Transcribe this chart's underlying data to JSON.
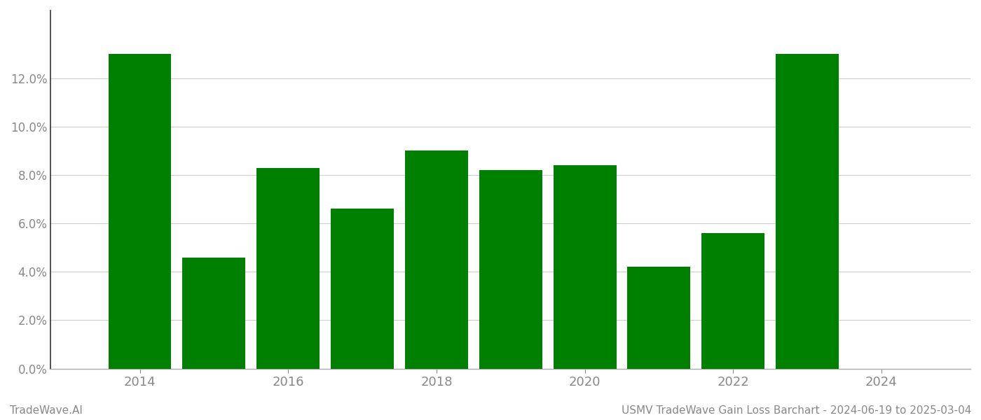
{
  "years": [
    2014,
    2015,
    2016,
    2017,
    2018,
    2019,
    2020,
    2021,
    2022,
    2023
  ],
  "values": [
    0.13,
    0.046,
    0.083,
    0.066,
    0.09,
    0.082,
    0.084,
    0.042,
    0.056,
    0.13
  ],
  "bar_color": "#008000",
  "bar_width": 0.85,
  "ylim": [
    0,
    0.148
  ],
  "yticks": [
    0.0,
    0.02,
    0.04,
    0.06,
    0.08,
    0.1,
    0.12
  ],
  "xtick_positions": [
    2014,
    2016,
    2018,
    2020,
    2022,
    2024
  ],
  "xlim_left": 2012.8,
  "xlim_right": 2025.2,
  "grid_color": "#cccccc",
  "grid_linewidth": 0.8,
  "tick_color": "#888888",
  "label_left": "TradeWave.AI",
  "label_right": "USMV TradeWave Gain Loss Barchart - 2024-06-19 to 2025-03-04",
  "label_fontsize": 11,
  "background_color": "#ffffff",
  "spine_color": "#aaaaaa",
  "left_spine_color": "#333333",
  "xtick_fontsize": 13,
  "ytick_fontsize": 12
}
